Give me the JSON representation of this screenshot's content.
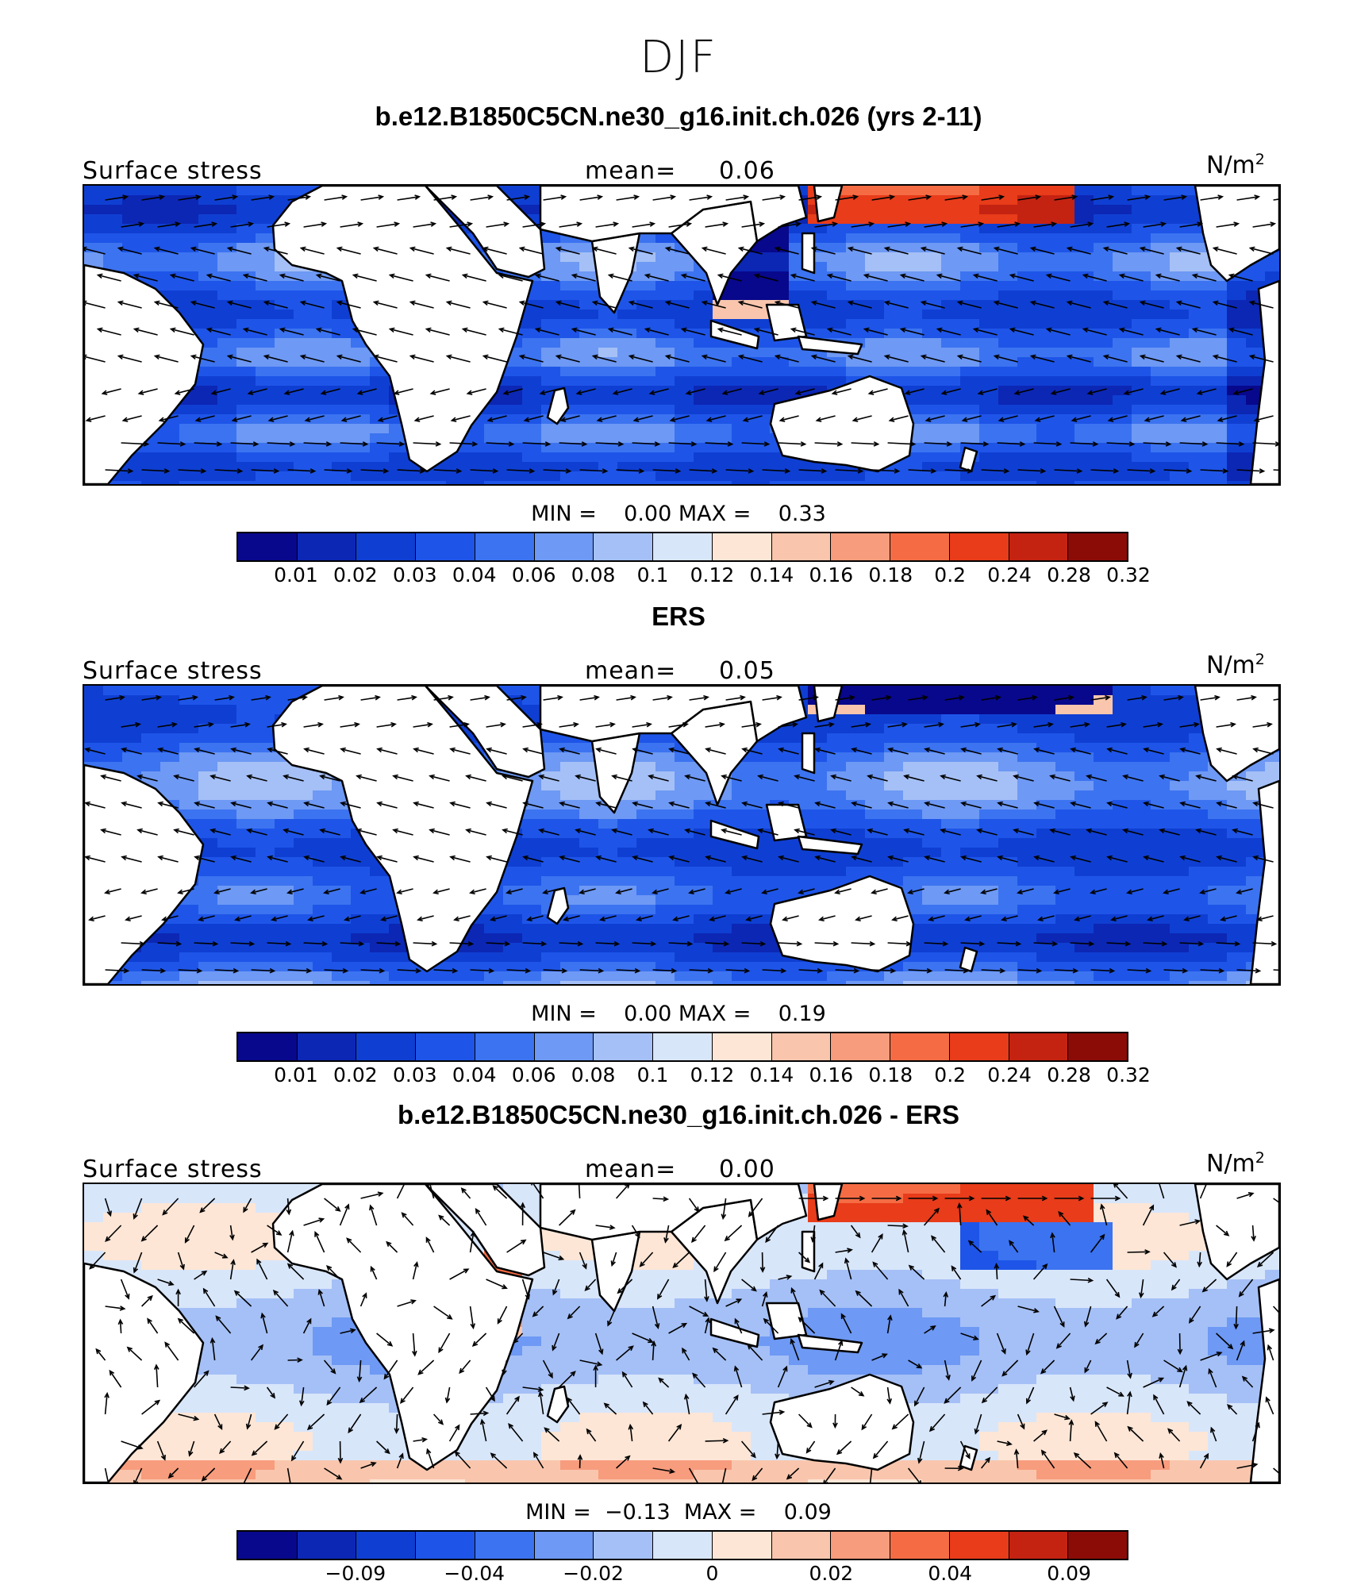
{
  "season": "DJF",
  "colors": {
    "scale": [
      "#08088c",
      "#0c27b4",
      "#0f3fd2",
      "#1e55e8",
      "#3c73f0",
      "#6e99f4",
      "#a5c0f6",
      "#d8e6fa",
      "#fde6d6",
      "#f9c6ad",
      "#f79c7d",
      "#f56c44",
      "#e83c1a",
      "#c42312",
      "#8b0c07"
    ],
    "land": "#ffffff",
    "arrow": "#000000"
  },
  "panels": [
    {
      "title": "b.e12.B1850C5CN.ne30_g16.init.ch.026 (yrs 2-11)",
      "variable": "Surface stress",
      "mean_label": "mean=",
      "mean": "0.06",
      "units": "N/m",
      "units_sup": "2",
      "min_label": "MIN =",
      "min": "0.00",
      "max_label": "MAX =",
      "max": "0.33",
      "colorbar_ticks": [
        "0.01",
        "0.02",
        "0.03",
        "0.04",
        "0.06",
        "0.08",
        "0.1",
        "0.12",
        "0.14",
        "0.16",
        "0.18",
        "0.2",
        "0.24",
        "0.28",
        "0.32"
      ],
      "field": "model"
    },
    {
      "title": "ERS",
      "variable": "Surface stress",
      "mean_label": "mean=",
      "mean": "0.05",
      "units": "N/m",
      "units_sup": "2",
      "min_label": "MIN =",
      "min": "0.00",
      "max_label": "MAX =",
      "max": "0.19",
      "colorbar_ticks": [
        "0.01",
        "0.02",
        "0.03",
        "0.04",
        "0.06",
        "0.08",
        "0.1",
        "0.12",
        "0.14",
        "0.16",
        "0.18",
        "0.2",
        "0.24",
        "0.28",
        "0.32"
      ],
      "field": "obs"
    },
    {
      "title": "b.e12.B1850C5CN.ne30_g16.init.ch.026 - ERS",
      "variable": "Surface stress",
      "mean_label": "mean=",
      "mean": "0.00",
      "units": "N/m",
      "units_sup": "2",
      "min_label": "MIN =",
      "min": "−0.13",
      "max_label": "MAX =",
      "max": "0.09",
      "colorbar_ticks": [
        "−0.09",
        "−0.04",
        "−0.02",
        "0",
        "0.02",
        "0.04",
        "0.09"
      ],
      "field": "diff"
    }
  ]
}
